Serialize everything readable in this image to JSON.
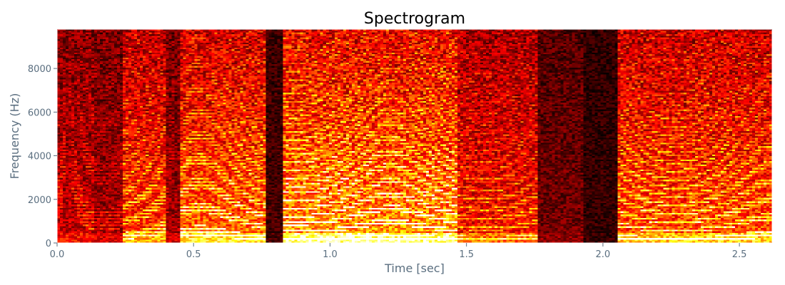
{
  "chart_data": {
    "type": "heatmap",
    "title": "Spectrogram",
    "xlabel": "Time [sec]",
    "ylabel": "Frequency (Hz)",
    "xlim": [
      0,
      2.62
    ],
    "ylim": [
      0,
      9800
    ],
    "x_ticks": [
      0.0,
      0.5,
      1.0,
      1.5,
      2.0,
      2.5
    ],
    "x_tick_labels": [
      "0.0",
      "0.5",
      "1.0",
      "1.5",
      "2.0",
      "2.5"
    ],
    "y_ticks": [
      0,
      2000,
      4000,
      6000,
      8000
    ],
    "y_tick_labels": [
      "0",
      "2000",
      "4000",
      "6000",
      "8000"
    ],
    "colormap": "hot",
    "grid": false,
    "colors": {
      "text": "#5a6e7f",
      "title": "#000000",
      "axis": "#000000"
    },
    "segments": [
      {
        "start": 0.0,
        "end": 0.14,
        "level": 0.55,
        "f0": 150
      },
      {
        "start": 0.14,
        "end": 0.24,
        "level": 0.45,
        "f0": 150
      },
      {
        "start": 0.24,
        "end": 0.4,
        "level": 0.8,
        "f0": 165
      },
      {
        "start": 0.4,
        "end": 0.45,
        "level": 0.45,
        "f0": 160
      },
      {
        "start": 0.45,
        "end": 0.76,
        "level": 0.9,
        "f0": 175
      },
      {
        "start": 0.76,
        "end": 0.83,
        "level": 0.12,
        "f0": 150
      },
      {
        "start": 0.83,
        "end": 1.47,
        "level": 1.0,
        "f0": 185
      },
      {
        "start": 1.47,
        "end": 1.76,
        "level": 0.7,
        "f0": 175
      },
      {
        "start": 1.76,
        "end": 1.93,
        "level": 0.3,
        "f0": 0
      },
      {
        "start": 1.93,
        "end": 2.05,
        "level": 0.05,
        "f0": 0
      },
      {
        "start": 2.05,
        "end": 2.62,
        "level": 0.85,
        "f0": 180
      }
    ]
  }
}
